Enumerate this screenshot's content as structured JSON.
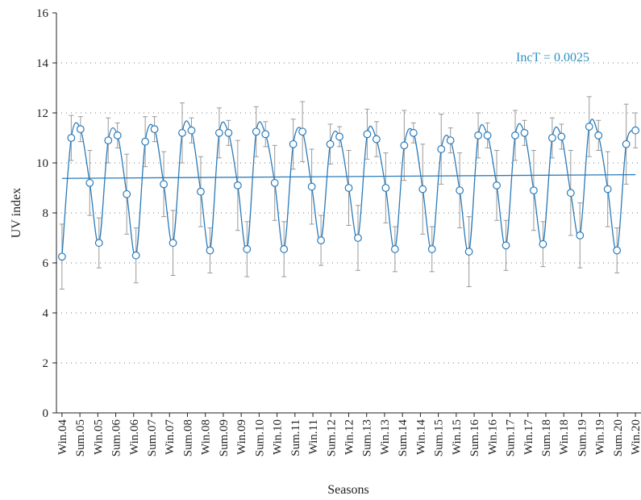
{
  "chart_data": {
    "type": "line",
    "ylabel": "UV index",
    "xlabel": "Seasons",
    "annotation": "IncT = 0.0025",
    "x": [
      0,
      1,
      2,
      3,
      4,
      5,
      6,
      7,
      8,
      9,
      10,
      11,
      12,
      13,
      14,
      15,
      16,
      17,
      18,
      19,
      20,
      21,
      22,
      23,
      24,
      25,
      26,
      27,
      28,
      29,
      30,
      31,
      32,
      33,
      34,
      35,
      36,
      37,
      38,
      39,
      40,
      41,
      42,
      43,
      44,
      45,
      46,
      47,
      48,
      49,
      50,
      51,
      52,
      53,
      54,
      55,
      56,
      57,
      58,
      59,
      60,
      61,
      62
    ],
    "series": [
      {
        "color": "#2b7bb9",
        "values": [
          6.25,
          11.0,
          11.35,
          9.2,
          6.8,
          10.9,
          11.1,
          8.75,
          6.3,
          10.85,
          11.35,
          9.15,
          6.8,
          11.2,
          11.3,
          8.85,
          6.5,
          11.2,
          11.2,
          9.1,
          6.55,
          11.25,
          11.15,
          9.2,
          6.55,
          10.75,
          11.25,
          9.05,
          6.9,
          10.75,
          11.05,
          9.0,
          7.0,
          11.15,
          10.95,
          9.0,
          6.55,
          10.7,
          11.2,
          8.95,
          6.55,
          10.55,
          10.9,
          8.9,
          6.45,
          11.1,
          11.1,
          9.1,
          6.7,
          11.1,
          11.2,
          8.9,
          6.75,
          11.0,
          11.05,
          8.8,
          7.1,
          11.45,
          11.1,
          8.95,
          6.5,
          10.75,
          11.3
        ],
        "errors": [
          1.3,
          0.9,
          0.5,
          1.3,
          1.0,
          0.9,
          0.5,
          1.6,
          1.1,
          1.0,
          0.5,
          1.3,
          1.3,
          1.2,
          0.5,
          1.4,
          0.9,
          1.0,
          0.5,
          1.8,
          1.1,
          1.0,
          0.5,
          1.5,
          1.1,
          1.0,
          1.2,
          1.5,
          1.0,
          0.8,
          0.4,
          1.5,
          1.3,
          1.0,
          0.7,
          1.4,
          0.9,
          1.4,
          0.4,
          1.8,
          0.9,
          1.4,
          0.5,
          1.5,
          1.4,
          0.9,
          0.5,
          1.4,
          1.0,
          1.0,
          0.5,
          1.6,
          0.9,
          0.8,
          0.5,
          1.7,
          1.3,
          1.2,
          0.6,
          1.5,
          0.9,
          1.6,
          0.7
        ]
      }
    ],
    "trend": {
      "color": "#2b7bb9",
      "x": [
        0,
        62
      ],
      "values": [
        9.38,
        9.53
      ]
    },
    "xlim": [
      -0.6,
      62.6
    ],
    "xticks": [
      {
        "value": 0,
        "label": "Win.04"
      },
      {
        "value": 1.9375,
        "label": "Sum.05"
      },
      {
        "value": 3.875,
        "label": "Win.05"
      },
      {
        "value": 5.8125,
        "label": "Sum.06"
      },
      {
        "value": 7.75,
        "label": "Win.06"
      },
      {
        "value": 9.6875,
        "label": "Sum.07"
      },
      {
        "value": 11.625,
        "label": "Win.07"
      },
      {
        "value": 13.5625,
        "label": "Sum.08"
      },
      {
        "value": 15.5,
        "label": "Win.08"
      },
      {
        "value": 17.4375,
        "label": "Sum.09"
      },
      {
        "value": 19.375,
        "label": "Win.09"
      },
      {
        "value": 21.3125,
        "label": "Sum.10"
      },
      {
        "value": 23.25,
        "label": "Win.10"
      },
      {
        "value": 25.1875,
        "label": "Sum.11"
      },
      {
        "value": 27.125,
        "label": "Win.11"
      },
      {
        "value": 29.0625,
        "label": "Sum.12"
      },
      {
        "value": 31,
        "label": "Win.12"
      },
      {
        "value": 32.9375,
        "label": "Sum.13"
      },
      {
        "value": 34.875,
        "label": "Win.13"
      },
      {
        "value": 36.8125,
        "label": "Sum.14"
      },
      {
        "value": 38.75,
        "label": "Win.14"
      },
      {
        "value": 40.6875,
        "label": "Sum.15"
      },
      {
        "value": 42.625,
        "label": "Win.15"
      },
      {
        "value": 44.5625,
        "label": "Sum.16"
      },
      {
        "value": 46.5,
        "label": "Win.16"
      },
      {
        "value": 48.4375,
        "label": "Sum.17"
      },
      {
        "value": 50.375,
        "label": "Win.17"
      },
      {
        "value": 52.3125,
        "label": "Sum.18"
      },
      {
        "value": 54.25,
        "label": "Win.18"
      },
      {
        "value": 56.1875,
        "label": "Sum.19"
      },
      {
        "value": 58.125,
        "label": "Win.19"
      },
      {
        "value": 60.0625,
        "label": "Sum.20"
      },
      {
        "value": 62,
        "label": "Win.20"
      }
    ],
    "ylim": [
      0,
      16
    ],
    "yticks": [
      0,
      2,
      4,
      6,
      8,
      10,
      12,
      14,
      16
    ],
    "grid": true
  }
}
